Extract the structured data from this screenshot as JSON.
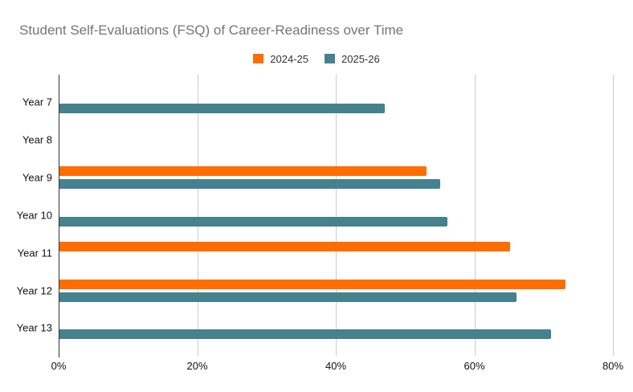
{
  "title": "Student Self-Evaluations (FSQ) of Career-Readiness over Time",
  "legend": {
    "items": [
      {
        "label": "2024-25",
        "color": "#FF6D01"
      },
      {
        "label": "2025-26",
        "color": "#45818E"
      }
    ]
  },
  "chart_data": {
    "type": "bar",
    "orientation": "horizontal",
    "title": "Student Self-Evaluations (FSQ) of Career-Readiness over Time",
    "categories": [
      "Year 7",
      "Year 8",
      "Year 9",
      "Year 10",
      "Year 11",
      "Year 12",
      "Year 13"
    ],
    "series": [
      {
        "name": "2024-25",
        "color": "#FF6D01",
        "values": [
          null,
          null,
          53,
          null,
          65,
          73,
          null
        ]
      },
      {
        "name": "2025-26",
        "color": "#45818E",
        "values": [
          47,
          null,
          55,
          56,
          null,
          66,
          71
        ]
      }
    ],
    "xlabel": "",
    "ylabel": "",
    "xlim": [
      0,
      80
    ],
    "xticks": {
      "values": [
        0,
        20,
        40,
        60,
        80
      ],
      "labels": [
        "0%",
        "20%",
        "40%",
        "60%",
        "80%"
      ]
    },
    "unit": "percent",
    "grid": "vertical",
    "legend_position": "top-center"
  },
  "colors": {
    "background": "#ffffff",
    "title_text": "#757575",
    "axis_text": "#111111",
    "gridline": "#cccccc",
    "axis_line": "#333333"
  }
}
